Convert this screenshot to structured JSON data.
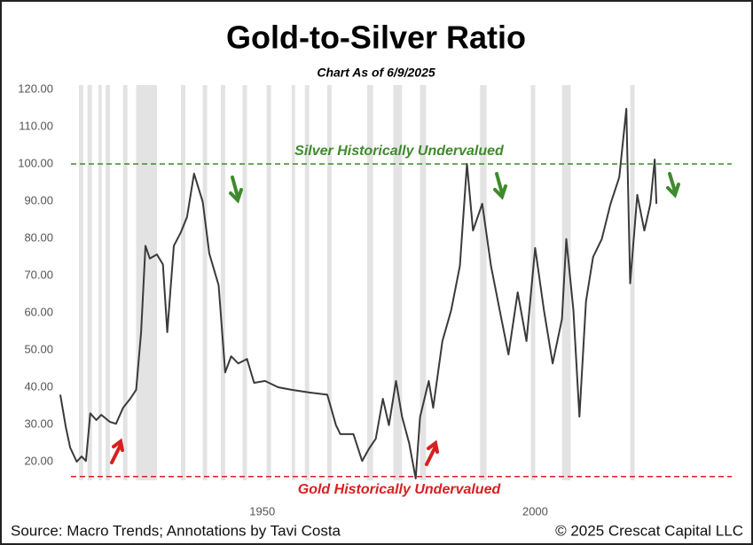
{
  "chart_data": {
    "type": "line",
    "title": "Gold-to-Silver Ratio",
    "subtitle": "Chart As of 6/9/2025",
    "source": "Source: Macro Trends; Annotations by Tavi Costa",
    "copyright": "© 2025 Crescat Capital LLC",
    "x": [
      1913,
      1914,
      1914.8,
      1916,
      1916.9,
      1917.7,
      1918.5,
      1919.6,
      1920.5,
      1922.1,
      1923.2,
      1924.5,
      1925.8,
      1926.9,
      1927.8,
      1928.6,
      1929.4,
      1930.7,
      1931.8,
      1932.6,
      1933.8,
      1935.1,
      1936.2,
      1937.5,
      1939.1,
      1940.3,
      1942,
      1943.2,
      1944.3,
      1945.6,
      1947.2,
      1948.5,
      1950.5,
      1952.9,
      1955.4,
      1958.6,
      1961.9,
      1963.5,
      1964.3,
      1966.7,
      1968.3,
      1969.6,
      1970.8,
      1972.1,
      1973.2,
      1974.5,
      1975.6,
      1976.9,
      1978.1,
      1978.9,
      1980.5,
      1981.3,
      1983,
      1984.6,
      1986.2,
      1987.5,
      1988.6,
      1990.3,
      1991.9,
      1993.5,
      1995.1,
      1996.8,
      1998.4,
      2000,
      2001.6,
      2003.2,
      2004.9,
      2005.7,
      2007,
      2008.1,
      2009.3,
      2010.6,
      2012.2,
      2013.8,
      2015.4,
      2016.7,
      2017.4,
      2018.7,
      2020,
      2021.1,
      2021.9,
      2022.2
    ],
    "series": [
      {
        "name": "Gold-to-Silver Ratio",
        "color": "#3a3a3a",
        "values": [
          38,
          29.3,
          23.8,
          20,
          21.4,
          20.2,
          33,
          31.2,
          32.6,
          30.7,
          30.2,
          34.5,
          36.9,
          39.3,
          54.8,
          78,
          74.6,
          75.7,
          73,
          54.8,
          78,
          81.7,
          85.7,
          97.4,
          89.8,
          75.9,
          67.4,
          44,
          48.3,
          46.4,
          47.6,
          41.2,
          41.7,
          40,
          39.3,
          38.6,
          38,
          29.8,
          27.4,
          27.4,
          20.2,
          23.6,
          26.2,
          36.9,
          29.8,
          41.7,
          32.1,
          25,
          15.5,
          32,
          41.7,
          34.5,
          52.4,
          60.7,
          72.6,
          100,
          82.1,
          89.3,
          72.6,
          60.7,
          48.8,
          65.5,
          52.4,
          77.4,
          60.7,
          46.4,
          58.3,
          79.8,
          60.7,
          32.1,
          63.1,
          75,
          79.8,
          89.3,
          96.4,
          114.8,
          67.9,
          91.7,
          82.1,
          89.3,
          101.2,
          89.3
        ]
      }
    ],
    "xlim": [
      1913,
      2036
    ],
    "xticks": [
      1950,
      2000
    ],
    "ylim": [
      15,
      120
    ],
    "yticks": [
      {
        "value": 20,
        "label": "20.00"
      },
      {
        "value": 30,
        "label": "30.00"
      },
      {
        "value": 40,
        "label": "40.00"
      },
      {
        "value": 50,
        "label": "50.00"
      },
      {
        "value": 60,
        "label": "60.00"
      },
      {
        "value": 70,
        "label": "70.00"
      },
      {
        "value": 80,
        "label": "80.00"
      },
      {
        "value": 90,
        "label": "90.00"
      },
      {
        "value": 100,
        "label": "100.00"
      },
      {
        "value": 110,
        "label": "110.00"
      },
      {
        "value": 120,
        "label": "120.00"
      }
    ],
    "grid": false,
    "shaded_periods": [
      [
        1916.4,
        1917.2
      ],
      [
        1918,
        1918.8
      ],
      [
        1920,
        1920.6
      ],
      [
        1921.3,
        1922.1
      ],
      [
        1924.5,
        1925.3
      ],
      [
        1926.9,
        1930.7
      ],
      [
        1935.1,
        1935.9
      ],
      [
        1939.1,
        1939.9
      ],
      [
        1942.4,
        1943.2
      ],
      [
        1946.4,
        1947.2
      ],
      [
        1950.8,
        1951.6
      ],
      [
        1955.4,
        1956
      ],
      [
        1957.8,
        1958.6
      ],
      [
        1961.9,
        1962.7
      ],
      [
        1969.2,
        1970.3
      ],
      [
        1974,
        1975.6
      ],
      [
        1978.9,
        1980
      ],
      [
        1989.9,
        1991.1
      ],
      [
        1999.2,
        2000
      ],
      [
        2004.9,
        2006.5
      ],
      [
        2017.4,
        2018.2
      ]
    ],
    "shade_color": "#e3e3e3",
    "reference_lines": [
      {
        "value": 100,
        "label": "Silver Historically Undervalued",
        "color": "#3f8a2c"
      },
      {
        "value": 16,
        "label": "Gold Historically Undervalued",
        "color": "#d62020"
      }
    ]
  }
}
